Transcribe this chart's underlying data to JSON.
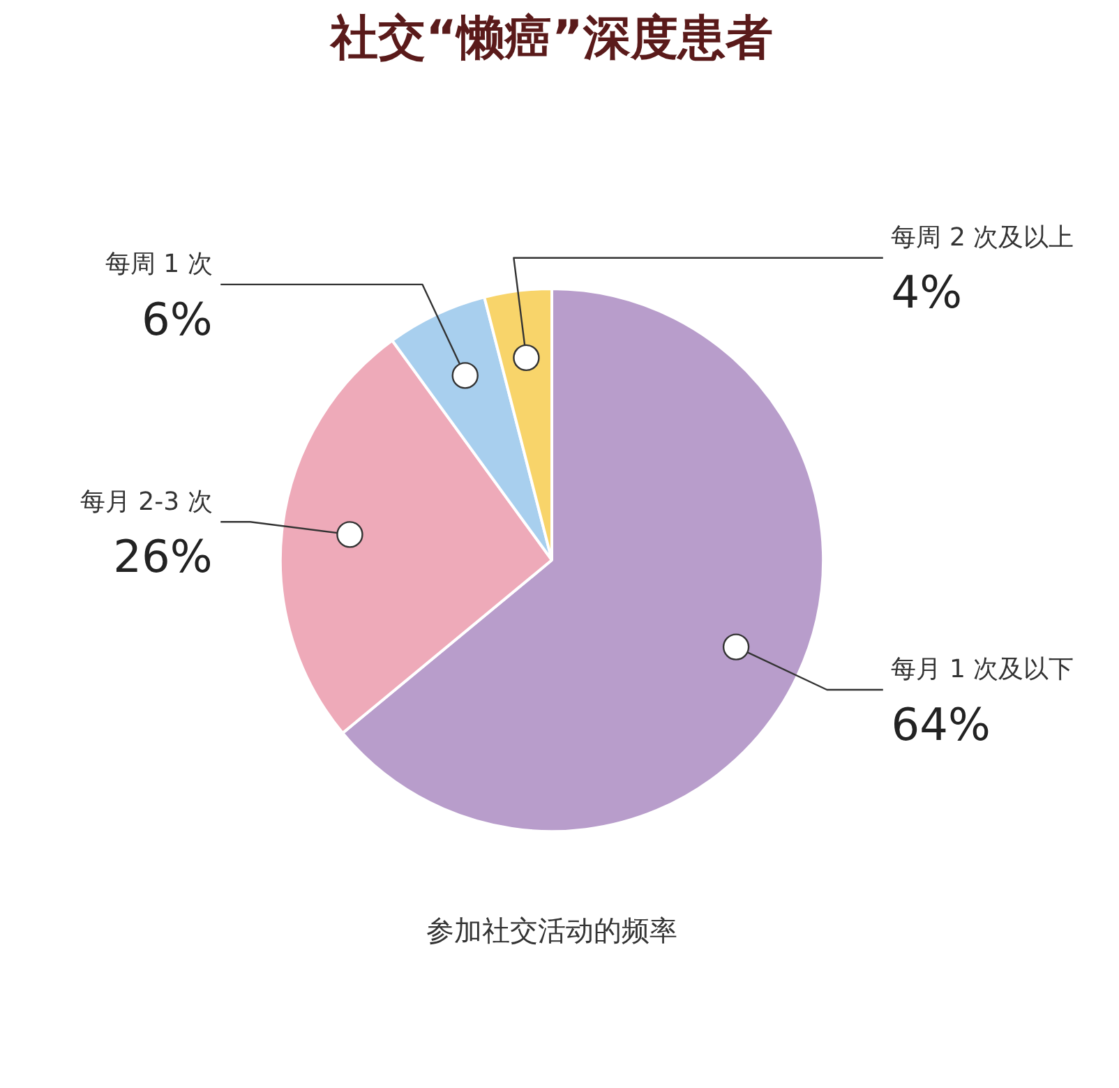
{
  "chart_data": {
    "type": "pie",
    "title": "社交“懒癌”深度患者",
    "categories": [
      "每月 1 次及以下",
      "每月 2-3 次",
      "每周 1 次",
      "每周 2 次及以上"
    ],
    "values": [
      64,
      26,
      6,
      4
    ],
    "value_labels": [
      "64%",
      "26%",
      "6%",
      "4%"
    ],
    "colors": [
      "#b89dcb",
      "#eeaab9",
      "#a8cfee",
      "#f8d46a"
    ],
    "annotations": [
      "参加社交活动的频率"
    ]
  }
}
